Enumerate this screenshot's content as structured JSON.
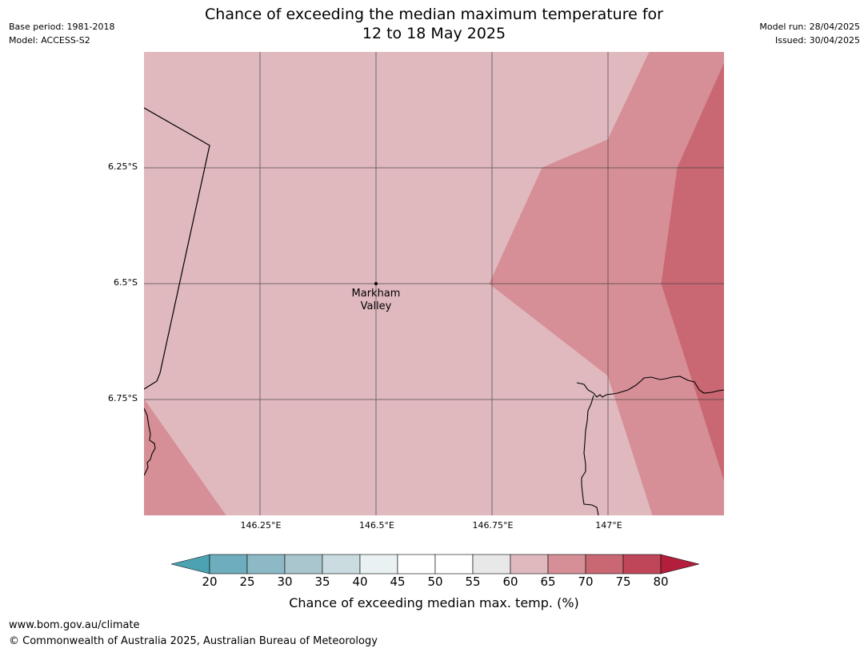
{
  "title": {
    "line1": "Chance of exceeding the median maximum temperature for",
    "line2": "12 to 18 May 2025"
  },
  "meta_left": {
    "base_period": "Base period: 1981-2018",
    "model": "Model: ACCESS-S2"
  },
  "meta_right": {
    "model_run": "Model run: 28/04/2025",
    "issued": "Issued: 30/04/2025"
  },
  "map": {
    "lat_labels": [
      "6.25°S",
      "6.5°S",
      "6.75°S"
    ],
    "lon_labels": [
      "146.25°E",
      "146.5°E",
      "146.75°E",
      "147°E"
    ],
    "place": {
      "name_line1": "Markham",
      "name_line2": "Valley"
    },
    "colors": {
      "band_60_65": "#e0b9bf",
      "band_65_70": "#d68f97",
      "band_70_75": "#c96872"
    }
  },
  "colorbar": {
    "ticks": [
      "20",
      "25",
      "30",
      "35",
      "40",
      "45",
      "50",
      "55",
      "60",
      "65",
      "70",
      "75",
      "80"
    ],
    "colors": [
      "#4da2b2",
      "#6eadbd",
      "#8db9c6",
      "#a9c6ce",
      "#cadcdf",
      "#e9f1f2",
      "#ffffff",
      "#ffffff",
      "#e8e8e8",
      "#e0b9bf",
      "#d68f97",
      "#c96872",
      "#bf4658",
      "#b21e3b"
    ],
    "label": "Chance of exceeding median max. temp. (%)"
  },
  "footer": {
    "url": "www.bom.gov.au/climate",
    "copyright": "© Commonwealth of Australia 2025, Australian Bureau of Meteorology"
  }
}
